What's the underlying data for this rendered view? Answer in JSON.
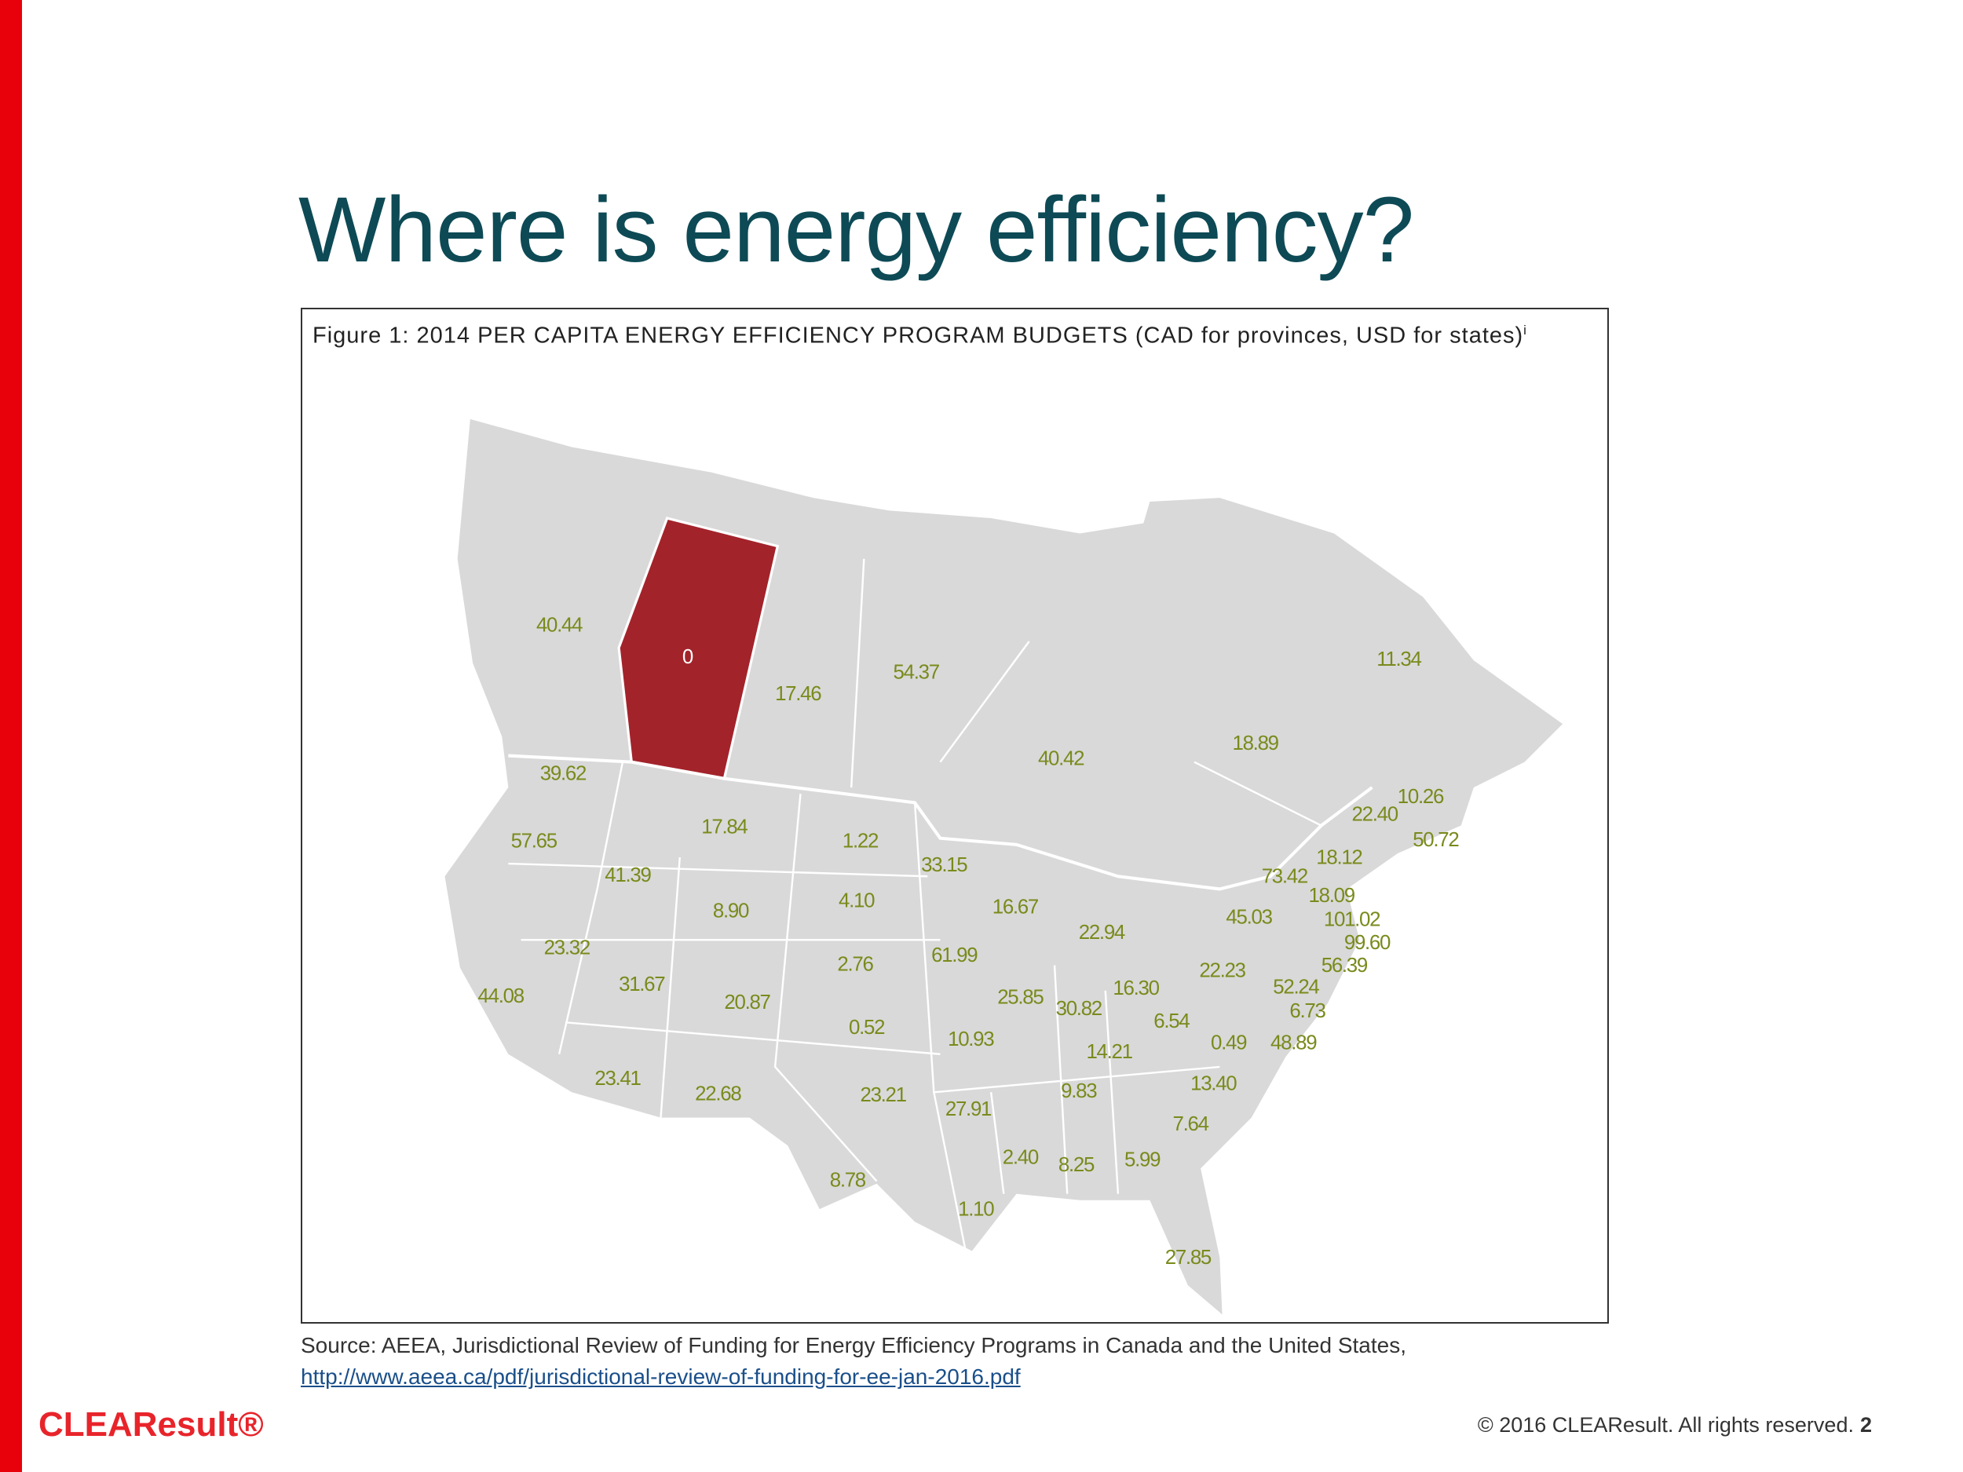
{
  "slide": {
    "title": "Where is energy efficiency?",
    "figure": {
      "caption": "Figure 1: 2014 PER CAPITA ENERGY EFFICIENCY PROGRAM BUDGETS (CAD for provinces, USD for states)",
      "caption_note": "i",
      "map_labels": [
        "40.44",
        "0",
        "17.46",
        "54.37",
        "40.42",
        "18.89",
        "11.34",
        "39.62",
        "57.65",
        "17.84",
        "1.22",
        "33.15",
        "41.39",
        "8.90",
        "4.10",
        "16.67",
        "22.94",
        "23.32",
        "2.76",
        "61.99",
        "31.67",
        "44.08",
        "20.87",
        "25.85",
        "30.82",
        "16.30",
        "22.23",
        "0.52",
        "10.93",
        "6.54",
        "14.21",
        "0.49",
        "48.89",
        "23.41",
        "22.68",
        "23.21",
        "27.91",
        "9.83",
        "13.40",
        "7.64",
        "2.40",
        "8.25",
        "5.99",
        "8.78",
        "1.10",
        "27.85",
        "10.26",
        "22.40",
        "50.72",
        "18.12",
        "73.42",
        "18.09",
        "45.03",
        "101.02",
        "99.60",
        "56.39",
        "52.24",
        "6.73"
      ]
    },
    "source": "Source: AEEA, Jurisdictional Review of Funding for Energy Efficiency Programs in Canada and the United States,",
    "source_link": "http://www.aeea.ca/pdf/jurisdictional-review-of-funding-for-ee-jan-2016.pdf",
    "logo": "CLEAResult®",
    "copyright": "© 2016 CLEAResult. All rights reserved.",
    "page_number": "2"
  }
}
